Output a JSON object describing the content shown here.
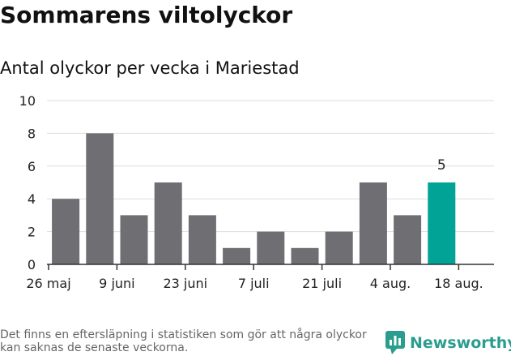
{
  "title": "Sommarens viltolyckor",
  "subtitle": "Antal olyckor per vecka i Mariestad",
  "footnote": "Det finns en eftersläpning i statistiken som gör att några olyckor kan saknas de senaste veckorna.",
  "brand": {
    "name": "Newsworthy",
    "color": "#2a9d8f"
  },
  "colors": {
    "bar": "#6f6e73",
    "highlight": "#00a396",
    "grid": "#dddddd",
    "axis": "#333333"
  },
  "chart_data": {
    "type": "bar",
    "values": [
      4,
      8,
      3,
      5,
      3,
      1,
      2,
      1,
      2,
      5,
      3,
      5
    ],
    "highlight_index": 11,
    "highlight_label": "5",
    "ylim": [
      0,
      10
    ],
    "yticks": [
      "0",
      "2",
      "4",
      "6",
      "8",
      "10"
    ],
    "xticks": [
      {
        "label": "26 maj",
        "pos": 0
      },
      {
        "label": "9 juni",
        "pos": 2
      },
      {
        "label": "23 juni",
        "pos": 4
      },
      {
        "label": "7 juli",
        "pos": 6
      },
      {
        "label": "21 juli",
        "pos": 8
      },
      {
        "label": "4 aug.",
        "pos": 10
      },
      {
        "label": "18 aug.",
        "pos": 12
      }
    ],
    "grid": true,
    "legend": "none"
  }
}
